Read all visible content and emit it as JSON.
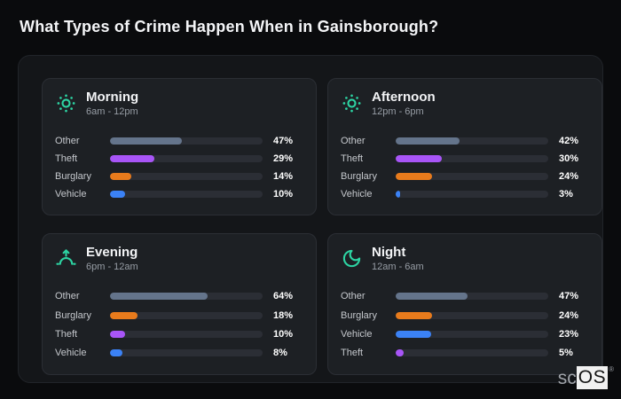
{
  "page_title": "What Types of Crime Happen When in Gainsborough?",
  "logo": {
    "prefix": "sc",
    "box": "OS",
    "registered": "®"
  },
  "theme": {
    "accent_teal": "#2dd4a3",
    "bar_track": "#2b2e35",
    "color_other": "#64748b",
    "color_theft": "#a855f7",
    "color_burglary": "#e87b1c",
    "color_vehicle": "#3b82f6",
    "card_bg": "#1d2024",
    "panel_bg": "#141619",
    "page_bg": "#0a0b0d"
  },
  "cards": [
    {
      "title": "Morning",
      "time_range": "6am - 12pm",
      "icon": "sun-dotted-icon",
      "rows": [
        {
          "label": "Other",
          "value": "47%",
          "pct": 47,
          "color": "#64748b"
        },
        {
          "label": "Theft",
          "value": "29%",
          "pct": 29,
          "color": "#a855f7"
        },
        {
          "label": "Burglary",
          "value": "14%",
          "pct": 14,
          "color": "#e87b1c"
        },
        {
          "label": "Vehicle",
          "value": "10%",
          "pct": 10,
          "color": "#3b82f6"
        }
      ]
    },
    {
      "title": "Afternoon",
      "time_range": "12pm - 6pm",
      "icon": "sun-dotted-icon",
      "rows": [
        {
          "label": "Other",
          "value": "42%",
          "pct": 42,
          "color": "#64748b"
        },
        {
          "label": "Theft",
          "value": "30%",
          "pct": 30,
          "color": "#a855f7"
        },
        {
          "label": "Burglary",
          "value": "24%",
          "pct": 24,
          "color": "#e87b1c"
        },
        {
          "label": "Vehicle",
          "value": "3%",
          "pct": 3,
          "color": "#3b82f6"
        }
      ]
    },
    {
      "title": "Evening",
      "time_range": "6pm - 12am",
      "icon": "sunrise-icon",
      "rows": [
        {
          "label": "Other",
          "value": "64%",
          "pct": 64,
          "color": "#64748b"
        },
        {
          "label": "Burglary",
          "value": "18%",
          "pct": 18,
          "color": "#e87b1c"
        },
        {
          "label": "Theft",
          "value": "10%",
          "pct": 10,
          "color": "#a855f7"
        },
        {
          "label": "Vehicle",
          "value": "8%",
          "pct": 8,
          "color": "#3b82f6"
        }
      ]
    },
    {
      "title": "Night",
      "time_range": "12am - 6am",
      "icon": "moon-icon",
      "rows": [
        {
          "label": "Other",
          "value": "47%",
          "pct": 47,
          "color": "#64748b"
        },
        {
          "label": "Burglary",
          "value": "24%",
          "pct": 24,
          "color": "#e87b1c"
        },
        {
          "label": "Vehicle",
          "value": "23%",
          "pct": 23,
          "color": "#3b82f6"
        },
        {
          "label": "Theft",
          "value": "5%",
          "pct": 5,
          "color": "#a855f7"
        }
      ]
    }
  ],
  "chart_data": [
    {
      "type": "bar",
      "orientation": "horizontal",
      "title": "Morning",
      "subtitle": "6am - 12pm",
      "categories": [
        "Other",
        "Theft",
        "Burglary",
        "Vehicle"
      ],
      "values": [
        47,
        29,
        14,
        10
      ],
      "unit": "%",
      "xlim": [
        0,
        100
      ],
      "grid": false,
      "legend": false
    },
    {
      "type": "bar",
      "orientation": "horizontal",
      "title": "Afternoon",
      "subtitle": "12pm - 6pm",
      "categories": [
        "Other",
        "Theft",
        "Burglary",
        "Vehicle"
      ],
      "values": [
        42,
        30,
        24,
        3
      ],
      "unit": "%",
      "xlim": [
        0,
        100
      ],
      "grid": false,
      "legend": false
    },
    {
      "type": "bar",
      "orientation": "horizontal",
      "title": "Evening",
      "subtitle": "6pm - 12am",
      "categories": [
        "Other",
        "Burglary",
        "Theft",
        "Vehicle"
      ],
      "values": [
        64,
        18,
        10,
        8
      ],
      "unit": "%",
      "xlim": [
        0,
        100
      ],
      "grid": false,
      "legend": false
    },
    {
      "type": "bar",
      "orientation": "horizontal",
      "title": "Night",
      "subtitle": "12am - 6am",
      "categories": [
        "Other",
        "Burglary",
        "Vehicle",
        "Theft"
      ],
      "values": [
        47,
        24,
        23,
        5
      ],
      "unit": "%",
      "xlim": [
        0,
        100
      ],
      "grid": false,
      "legend": false
    }
  ]
}
